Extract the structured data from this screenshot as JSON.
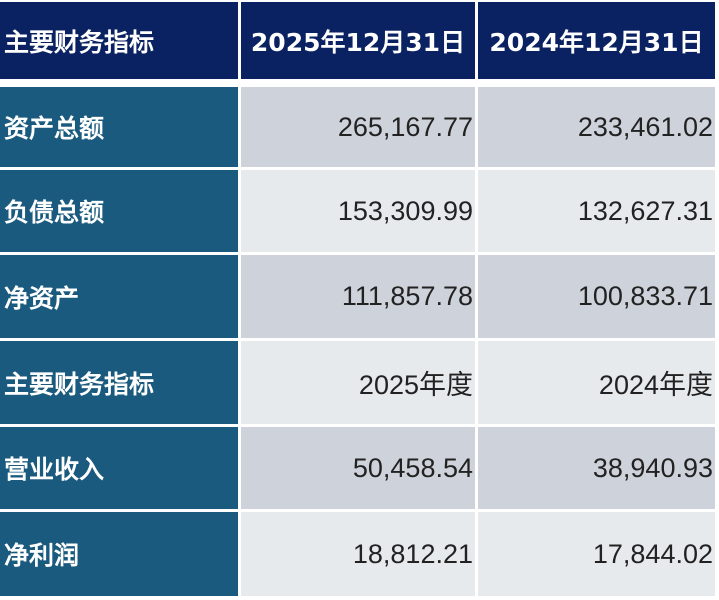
{
  "header": [
    "主要财务指标",
    "2025年12月31日",
    "2024年12月31日"
  ],
  "rows": [
    [
      "资产总额",
      "265,167.77",
      "233,461.02"
    ],
    [
      "负债总额",
      "153,309.99",
      "132,627.31"
    ],
    [
      "净资产",
      "111,857.78",
      "100,833.71"
    ],
    [
      "主要财务指标",
      "2025年度",
      "2024年度"
    ],
    [
      "营业收入",
      "50,458.54",
      "38,940.93"
    ],
    [
      "净利润",
      "18,812.21",
      "17,844.02"
    ]
  ],
  "colors": {
    "header": "#0b2262",
    "label_column": "#1a5a7e",
    "row_dark": "#ced3db",
    "row_light": "#e7eaed"
  }
}
